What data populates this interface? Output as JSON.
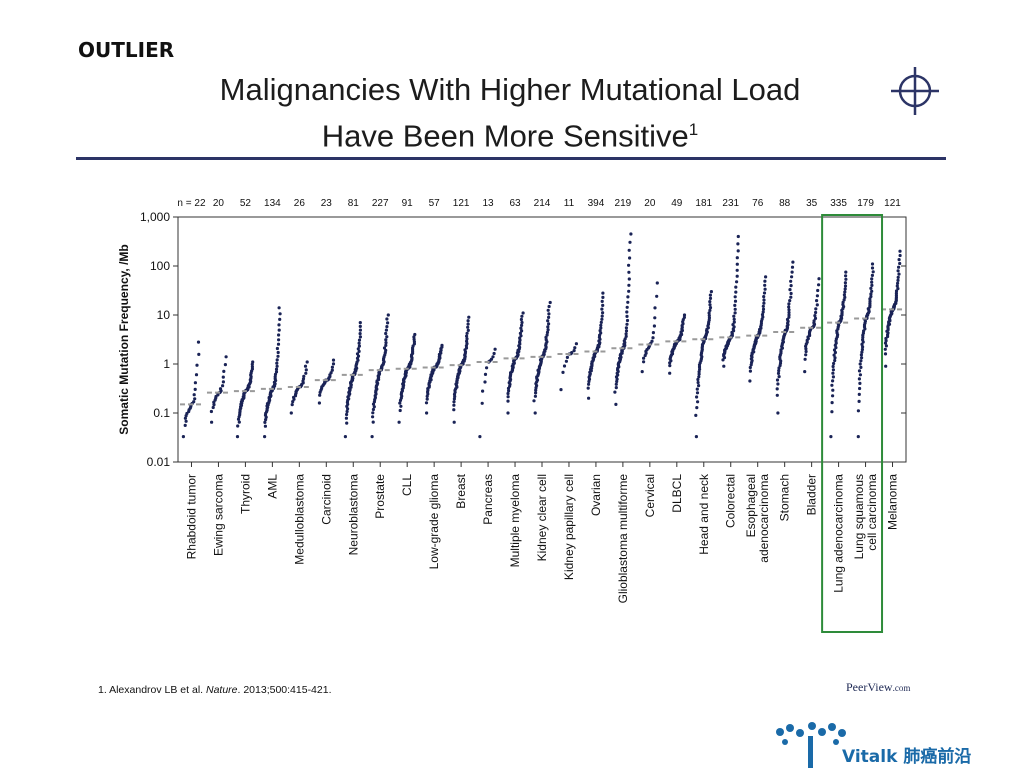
{
  "slide": {
    "corner_tag": "OUTLIER",
    "title_line1": "Malignancies With Higher Mutational Load",
    "title_line2": "Have Been More Sensitive",
    "title_sup": "1",
    "footnote_prefix": "1. Alexandrov LB et al. ",
    "footnote_journal": "Nature",
    "footnote_suffix": ". 2013;500:415-421.",
    "brand": "PeerView",
    "brand_suffix": ".com",
    "logo_text": "Vitalk 肺癌前沿",
    "colors": {
      "rule": "#2c3466",
      "dots": "#1a2356",
      "median": "#9a9a9a",
      "highlight_box": "#2e8b3a",
      "logo": "#1a6aa8"
    }
  },
  "chart_data": {
    "type": "scatter",
    "ylabel": "Somatic Mutation Frequency, /Mb",
    "yscale": "log",
    "ylim": [
      0.01,
      1000
    ],
    "yticks": [
      "0.01",
      "0.1",
      "1",
      "10",
      "100",
      "1,000"
    ],
    "n_label": "n = ",
    "highlight": [
      "Lung adenocarcinoma",
      "Lung squamous cell carcinoma"
    ],
    "categories": [
      {
        "name": "Rhabdoid tumor",
        "n": "22",
        "median": 0.15,
        "min": 0.033,
        "max": 2.8
      },
      {
        "name": "Ewing sarcoma",
        "n": "20",
        "median": 0.26,
        "min": 0.065,
        "max": 1.4
      },
      {
        "name": "Thyroid",
        "n": "52",
        "median": 0.28,
        "min": 0.033,
        "max": 1.1
      },
      {
        "name": "AML",
        "n": "134",
        "median": 0.31,
        "min": 0.033,
        "max": 14
      },
      {
        "name": "Medulloblastoma",
        "n": "26",
        "median": 0.34,
        "min": 0.1,
        "max": 1.1
      },
      {
        "name": "Carcinoid",
        "n": "23",
        "median": 0.47,
        "min": 0.16,
        "max": 1.2
      },
      {
        "name": "Neuroblastoma",
        "n": "81",
        "median": 0.6,
        "min": 0.033,
        "max": 7
      },
      {
        "name": "Prostate",
        "n": "227",
        "median": 0.75,
        "min": 0.033,
        "max": 10
      },
      {
        "name": "CLL",
        "n": "91",
        "median": 0.8,
        "min": 0.065,
        "max": 4
      },
      {
        "name": "Low-grade glioma",
        "n": "57",
        "median": 0.85,
        "min": 0.1,
        "max": 2.4
      },
      {
        "name": "Breast",
        "n": "121",
        "median": 0.95,
        "min": 0.065,
        "max": 9
      },
      {
        "name": "Pancreas",
        "n": "13",
        "median": 1.1,
        "min": 0.033,
        "max": 2
      },
      {
        "name": "Multiple myeloma",
        "n": "63",
        "median": 1.3,
        "min": 0.1,
        "max": 11
      },
      {
        "name": "Kidney clear cell",
        "n": "214",
        "median": 1.4,
        "min": 0.1,
        "max": 18
      },
      {
        "name": "Kidney papillary cell",
        "n": "11",
        "median": 1.6,
        "min": 0.3,
        "max": 2.6
      },
      {
        "name": "Ovarian",
        "n": "394",
        "median": 1.8,
        "min": 0.2,
        "max": 28
      },
      {
        "name": "Glioblastoma multiforme",
        "n": "219",
        "median": 2.1,
        "min": 0.15,
        "max": 450
      },
      {
        "name": "Cervical",
        "n": "20",
        "median": 2.5,
        "min": 0.7,
        "max": 45
      },
      {
        "name": "DLBCL",
        "n": "49",
        "median": 2.9,
        "min": 0.65,
        "max": 10
      },
      {
        "name": "Head and neck",
        "n": "181",
        "median": 3.2,
        "min": 0.033,
        "max": 30
      },
      {
        "name": "Colorectal",
        "n": "231",
        "median": 3.5,
        "min": 0.9,
        "max": 400
      },
      {
        "name": "Esophageal adenocarcinoma",
        "n": "76",
        "median": 3.8,
        "min": 0.45,
        "max": 60
      },
      {
        "name": "Stomach",
        "n": "88",
        "median": 4.5,
        "min": 0.1,
        "max": 120
      },
      {
        "name": "Bladder",
        "n": "35",
        "median": 5.5,
        "min": 0.7,
        "max": 55
      },
      {
        "name": "Lung adenocarcinoma",
        "n": "335",
        "median": 7,
        "min": 0.033,
        "max": 75
      },
      {
        "name": "Lung squamous cell carcinoma",
        "n": "179",
        "median": 8.5,
        "min": 0.033,
        "max": 110
      },
      {
        "name": "Melanoma",
        "n": "121",
        "median": 13,
        "min": 0.9,
        "max": 200
      }
    ],
    "xlabels": [
      [
        "Rhabdoid tumor"
      ],
      [
        "Ewing sarcoma"
      ],
      [
        "Thyroid"
      ],
      [
        "AML"
      ],
      [
        "Medulloblastoma"
      ],
      [
        "Carcinoid"
      ],
      [
        "Neuroblastoma"
      ],
      [
        "Prostate"
      ],
      [
        "CLL"
      ],
      [
        "Low-grade glioma"
      ],
      [
        "Breast"
      ],
      [
        "Pancreas"
      ],
      [
        "Multiple myeloma"
      ],
      [
        "Kidney clear cell"
      ],
      [
        "Kidney papillary cell"
      ],
      [
        "Ovarian"
      ],
      [
        "Glioblastoma multiforme"
      ],
      [
        "Cervical"
      ],
      [
        "DLBCL"
      ],
      [
        "Head and neck"
      ],
      [
        "Colorectal"
      ],
      [
        "Esophageal",
        "adenocarcinoma"
      ],
      [
        "Stomach"
      ],
      [
        "Bladder"
      ],
      [
        "Lung  adenocarcinoma"
      ],
      [
        "Lung squamous",
        "cell carcinoma"
      ],
      [
        "Melanoma"
      ]
    ]
  }
}
